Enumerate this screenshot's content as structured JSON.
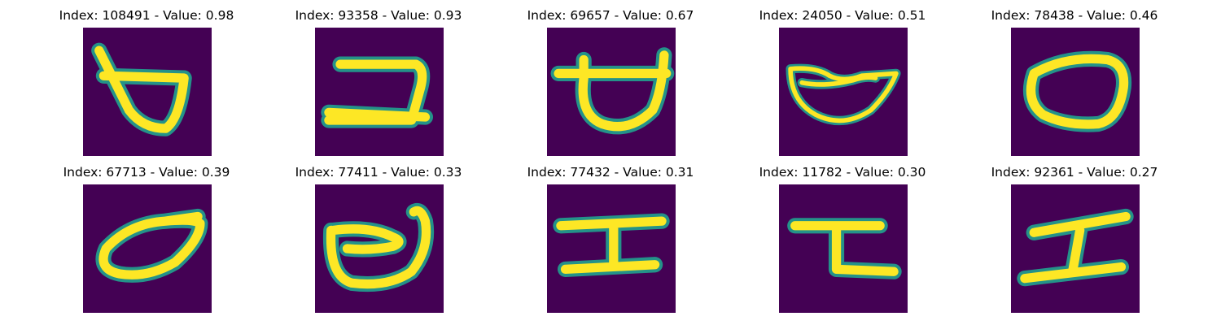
{
  "figure": {
    "colors": {
      "background": "#440154",
      "stroke": "#fde725",
      "halo": "#21a28f"
    },
    "panels": [
      {
        "title": "Index: 108491 - Value: 0.98",
        "glyph": "glyph-triangle-loop"
      },
      {
        "title": "Index: 93358 - Value: 0.93",
        "glyph": "glyph-bracket"
      },
      {
        "title": "Index: 69657 - Value: 0.67",
        "glyph": "glyph-bowl-bar"
      },
      {
        "title": "Index: 24050 - Value: 0.51",
        "glyph": "glyph-thin-bowl"
      },
      {
        "title": "Index: 78438 - Value: 0.46",
        "glyph": "glyph-loop"
      },
      {
        "title": "Index: 67713 - Value: 0.39",
        "glyph": "glyph-tilted-loop"
      },
      {
        "title": "Index: 77411 - Value: 0.33",
        "glyph": "glyph-curl-loop"
      },
      {
        "title": "Index: 77432 - Value: 0.31",
        "glyph": "glyph-i-beam"
      },
      {
        "title": "Index: 11782 - Value: 0.30",
        "glyph": "glyph-z-step"
      },
      {
        "title": "Index: 92361 - Value: 0.27",
        "glyph": "glyph-i-beam"
      }
    ]
  }
}
